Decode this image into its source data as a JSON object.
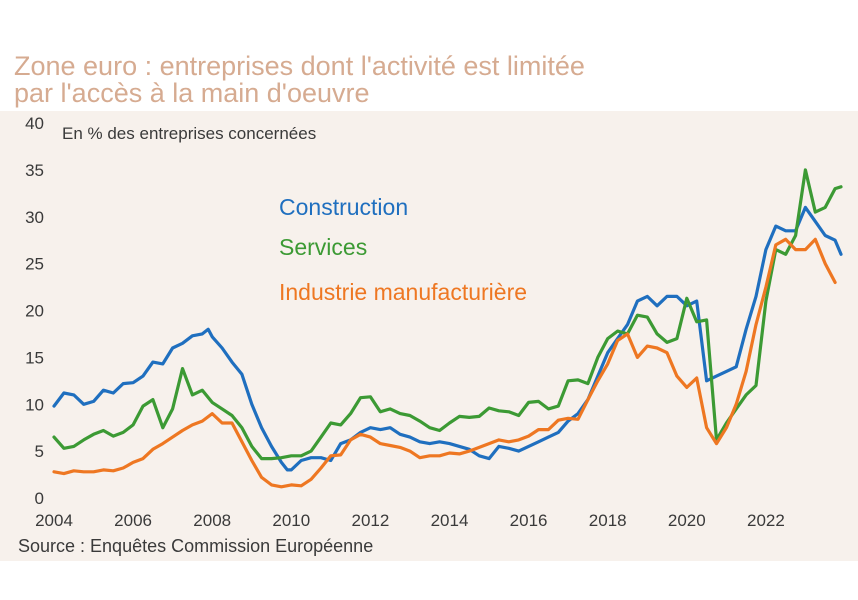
{
  "title": {
    "line1": "Zone euro : entreprises dont l'activité est limitée",
    "line2": "par l'accès à la main d'oeuvre"
  },
  "source": "Source : Enquêtes Commission Européenne",
  "colors": {
    "title": "#d6ab91",
    "background": "#f7f1ec",
    "construction": "#1f6fbf",
    "services": "#3c9a34",
    "industrie": "#ee7722",
    "text": "#3a3a3a"
  },
  "chart_data": {
    "type": "line",
    "title": "Zone euro : entreprises dont l'activité est limitée par l'accès à la main d'oeuvre",
    "ylabel": "En % des entreprises concernées",
    "xlabel": "",
    "xlim": [
      2004,
      2024
    ],
    "ylim": [
      0,
      40
    ],
    "x_ticks": [
      2004,
      2006,
      2008,
      2010,
      2012,
      2014,
      2016,
      2018,
      2020,
      2022
    ],
    "y_ticks": [
      0,
      5,
      10,
      15,
      20,
      25,
      30,
      35,
      40
    ],
    "grid": false,
    "legend_position": "upper-left",
    "series": [
      {
        "name": "Construction",
        "color": "#1f6fbf",
        "points": [
          [
            2004.0,
            9.8
          ],
          [
            2004.25,
            11.2
          ],
          [
            2004.5,
            11.0
          ],
          [
            2004.75,
            10.0
          ],
          [
            2005.0,
            10.3
          ],
          [
            2005.25,
            11.5
          ],
          [
            2005.5,
            11.2
          ],
          [
            2005.75,
            12.2
          ],
          [
            2006.0,
            12.3
          ],
          [
            2006.25,
            13.0
          ],
          [
            2006.5,
            14.5
          ],
          [
            2006.75,
            14.3
          ],
          [
            2007.0,
            16.0
          ],
          [
            2007.25,
            16.5
          ],
          [
            2007.5,
            17.3
          ],
          [
            2007.75,
            17.5
          ],
          [
            2007.9,
            18.0
          ],
          [
            2008.0,
            17.2
          ],
          [
            2008.25,
            16.0
          ],
          [
            2008.5,
            14.5
          ],
          [
            2008.75,
            13.2
          ],
          [
            2009.0,
            10.0
          ],
          [
            2009.25,
            7.5
          ],
          [
            2009.5,
            5.5
          ],
          [
            2009.75,
            3.8
          ],
          [
            2009.9,
            3.0
          ],
          [
            2010.0,
            3.0
          ],
          [
            2010.25,
            4.0
          ],
          [
            2010.5,
            4.3
          ],
          [
            2010.75,
            4.3
          ],
          [
            2011.0,
            4.0
          ],
          [
            2011.25,
            5.8
          ],
          [
            2011.5,
            6.2
          ],
          [
            2011.75,
            7.0
          ],
          [
            2012.0,
            7.5
          ],
          [
            2012.25,
            7.3
          ],
          [
            2012.5,
            7.5
          ],
          [
            2012.75,
            6.8
          ],
          [
            2013.0,
            6.5
          ],
          [
            2013.25,
            6.0
          ],
          [
            2013.5,
            5.8
          ],
          [
            2013.75,
            6.0
          ],
          [
            2014.0,
            5.8
          ],
          [
            2014.25,
            5.5
          ],
          [
            2014.5,
            5.2
          ],
          [
            2014.75,
            4.5
          ],
          [
            2015.0,
            4.2
          ],
          [
            2015.25,
            5.5
          ],
          [
            2015.5,
            5.3
          ],
          [
            2015.75,
            5.0
          ],
          [
            2016.0,
            5.5
          ],
          [
            2016.25,
            6.0
          ],
          [
            2016.5,
            6.5
          ],
          [
            2016.75,
            7.0
          ],
          [
            2017.0,
            8.2
          ],
          [
            2017.25,
            9.0
          ],
          [
            2017.5,
            10.5
          ],
          [
            2017.75,
            13.0
          ],
          [
            2018.0,
            15.5
          ],
          [
            2018.25,
            17.0
          ],
          [
            2018.5,
            18.5
          ],
          [
            2018.75,
            21.0
          ],
          [
            2019.0,
            21.5
          ],
          [
            2019.25,
            20.5
          ],
          [
            2019.5,
            21.5
          ],
          [
            2019.75,
            21.5
          ],
          [
            2020.0,
            20.5
          ],
          [
            2020.25,
            21.0
          ],
          [
            2020.5,
            12.5
          ],
          [
            2020.75,
            13.0
          ],
          [
            2021.0,
            13.5
          ],
          [
            2021.25,
            14.0
          ],
          [
            2021.5,
            18.0
          ],
          [
            2021.75,
            21.5
          ],
          [
            2022.0,
            26.5
          ],
          [
            2022.25,
            29.0
          ],
          [
            2022.5,
            28.5
          ],
          [
            2022.75,
            28.5
          ],
          [
            2023.0,
            31.0
          ],
          [
            2023.25,
            29.5
          ],
          [
            2023.5,
            28.0
          ],
          [
            2023.75,
            27.5
          ],
          [
            2023.9,
            26.0
          ]
        ]
      },
      {
        "name": "Services",
        "color": "#3c9a34",
        "points": [
          [
            2004.0,
            6.5
          ],
          [
            2004.25,
            5.3
          ],
          [
            2004.5,
            5.5
          ],
          [
            2004.75,
            6.2
          ],
          [
            2005.0,
            6.8
          ],
          [
            2005.25,
            7.2
          ],
          [
            2005.5,
            6.6
          ],
          [
            2005.75,
            7.0
          ],
          [
            2006.0,
            7.8
          ],
          [
            2006.25,
            9.8
          ],
          [
            2006.5,
            10.5
          ],
          [
            2006.75,
            7.5
          ],
          [
            2007.0,
            9.5
          ],
          [
            2007.25,
            13.8
          ],
          [
            2007.5,
            11.0
          ],
          [
            2007.75,
            11.5
          ],
          [
            2008.0,
            10.2
          ],
          [
            2008.25,
            9.5
          ],
          [
            2008.5,
            8.8
          ],
          [
            2008.75,
            7.5
          ],
          [
            2009.0,
            5.5
          ],
          [
            2009.25,
            4.2
          ],
          [
            2009.5,
            4.2
          ],
          [
            2009.75,
            4.3
          ],
          [
            2010.0,
            4.5
          ],
          [
            2010.25,
            4.5
          ],
          [
            2010.5,
            5.0
          ],
          [
            2010.75,
            6.5
          ],
          [
            2011.0,
            8.0
          ],
          [
            2011.25,
            7.8
          ],
          [
            2011.5,
            9.0
          ],
          [
            2011.75,
            10.7
          ],
          [
            2012.0,
            10.8
          ],
          [
            2012.25,
            9.2
          ],
          [
            2012.5,
            9.5
          ],
          [
            2012.75,
            9.0
          ],
          [
            2013.0,
            8.8
          ],
          [
            2013.25,
            8.2
          ],
          [
            2013.5,
            7.5
          ],
          [
            2013.75,
            7.2
          ],
          [
            2014.0,
            8.0
          ],
          [
            2014.25,
            8.7
          ],
          [
            2014.5,
            8.6
          ],
          [
            2014.75,
            8.7
          ],
          [
            2015.0,
            9.6
          ],
          [
            2015.25,
            9.3
          ],
          [
            2015.5,
            9.2
          ],
          [
            2015.75,
            8.8
          ],
          [
            2016.0,
            10.2
          ],
          [
            2016.25,
            10.3
          ],
          [
            2016.5,
            9.5
          ],
          [
            2016.75,
            9.8
          ],
          [
            2017.0,
            12.5
          ],
          [
            2017.25,
            12.6
          ],
          [
            2017.5,
            12.2
          ],
          [
            2017.75,
            15.0
          ],
          [
            2018.0,
            17.0
          ],
          [
            2018.25,
            17.8
          ],
          [
            2018.5,
            17.5
          ],
          [
            2018.75,
            19.5
          ],
          [
            2019.0,
            19.3
          ],
          [
            2019.25,
            17.5
          ],
          [
            2019.5,
            16.6
          ],
          [
            2019.75,
            17.0
          ],
          [
            2020.0,
            21.3
          ],
          [
            2020.25,
            18.8
          ],
          [
            2020.5,
            19.0
          ],
          [
            2020.75,
            6.2
          ],
          [
            2021.0,
            8.0
          ],
          [
            2021.25,
            9.5
          ],
          [
            2021.5,
            11.0
          ],
          [
            2021.75,
            12.0
          ],
          [
            2022.0,
            21.0
          ],
          [
            2022.25,
            26.5
          ],
          [
            2022.5,
            26.0
          ],
          [
            2022.75,
            28.0
          ],
          [
            2023.0,
            35.0
          ],
          [
            2023.25,
            30.5
          ],
          [
            2023.5,
            31.0
          ],
          [
            2023.75,
            33.0
          ],
          [
            2023.9,
            33.2
          ]
        ]
      },
      {
        "name": "Industrie manufacturière",
        "color": "#ee7722",
        "points": [
          [
            2004.0,
            2.8
          ],
          [
            2004.25,
            2.6
          ],
          [
            2004.5,
            2.9
          ],
          [
            2004.75,
            2.8
          ],
          [
            2005.0,
            2.8
          ],
          [
            2005.25,
            3.0
          ],
          [
            2005.5,
            2.9
          ],
          [
            2005.75,
            3.2
          ],
          [
            2006.0,
            3.8
          ],
          [
            2006.25,
            4.2
          ],
          [
            2006.5,
            5.2
          ],
          [
            2006.75,
            5.8
          ],
          [
            2007.0,
            6.5
          ],
          [
            2007.25,
            7.2
          ],
          [
            2007.5,
            7.8
          ],
          [
            2007.75,
            8.2
          ],
          [
            2008.0,
            9.0
          ],
          [
            2008.25,
            8.0
          ],
          [
            2008.5,
            8.0
          ],
          [
            2008.75,
            6.0
          ],
          [
            2009.0,
            4.0
          ],
          [
            2009.25,
            2.2
          ],
          [
            2009.5,
            1.4
          ],
          [
            2009.75,
            1.2
          ],
          [
            2010.0,
            1.4
          ],
          [
            2010.25,
            1.3
          ],
          [
            2010.5,
            2.0
          ],
          [
            2010.75,
            3.2
          ],
          [
            2011.0,
            4.5
          ],
          [
            2011.25,
            4.6
          ],
          [
            2011.5,
            6.2
          ],
          [
            2011.75,
            6.8
          ],
          [
            2012.0,
            6.5
          ],
          [
            2012.25,
            5.8
          ],
          [
            2012.5,
            5.6
          ],
          [
            2012.75,
            5.4
          ],
          [
            2013.0,
            5.0
          ],
          [
            2013.25,
            4.3
          ],
          [
            2013.5,
            4.5
          ],
          [
            2013.75,
            4.5
          ],
          [
            2014.0,
            4.8
          ],
          [
            2014.25,
            4.7
          ],
          [
            2014.5,
            5.0
          ],
          [
            2014.75,
            5.4
          ],
          [
            2015.0,
            5.8
          ],
          [
            2015.25,
            6.2
          ],
          [
            2015.5,
            6.0
          ],
          [
            2015.75,
            6.2
          ],
          [
            2016.0,
            6.6
          ],
          [
            2016.25,
            7.3
          ],
          [
            2016.5,
            7.3
          ],
          [
            2016.75,
            8.3
          ],
          [
            2017.0,
            8.5
          ],
          [
            2017.25,
            8.4
          ],
          [
            2017.5,
            10.5
          ],
          [
            2017.75,
            12.5
          ],
          [
            2018.0,
            14.3
          ],
          [
            2018.25,
            16.8
          ],
          [
            2018.5,
            17.5
          ],
          [
            2018.75,
            15.0
          ],
          [
            2019.0,
            16.2
          ],
          [
            2019.25,
            16.0
          ],
          [
            2019.5,
            15.5
          ],
          [
            2019.75,
            13.0
          ],
          [
            2020.0,
            11.8
          ],
          [
            2020.25,
            12.8
          ],
          [
            2020.5,
            7.5
          ],
          [
            2020.75,
            5.8
          ],
          [
            2021.0,
            7.5
          ],
          [
            2021.25,
            10.0
          ],
          [
            2021.5,
            13.5
          ],
          [
            2021.75,
            18.5
          ],
          [
            2022.0,
            22.5
          ],
          [
            2022.25,
            27.0
          ],
          [
            2022.5,
            27.6
          ],
          [
            2022.75,
            26.5
          ],
          [
            2023.0,
            26.5
          ],
          [
            2023.25,
            27.6
          ],
          [
            2023.5,
            25.0
          ],
          [
            2023.75,
            23.0
          ]
        ]
      }
    ]
  }
}
